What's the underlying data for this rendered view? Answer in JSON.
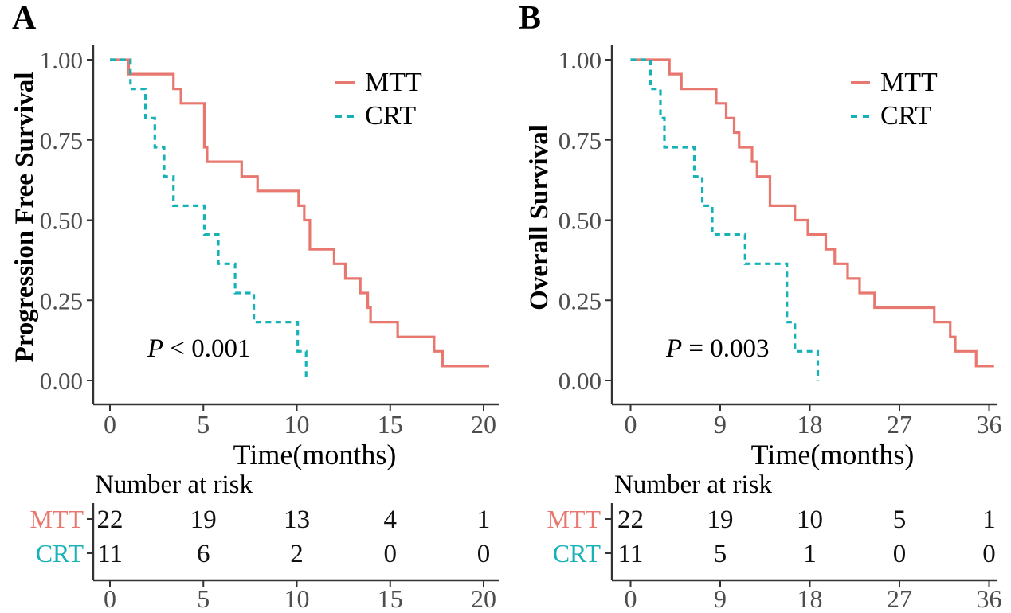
{
  "figure_type": "Kaplan-Meier survival curves, two panels",
  "chart_data": [
    {
      "panel_label": "A",
      "type": "line",
      "chart_style": "kaplan-meier-step",
      "ylabel": "Progression Free Survival",
      "xlabel": "Time(months)",
      "p_sym": "P",
      "p_rest": " < 0.001",
      "xlim": [
        0,
        20.5
      ],
      "ylim": [
        0,
        1
      ],
      "x_ticks": [
        0,
        5,
        10,
        15,
        20
      ],
      "y_tick_values": [
        1,
        0.75,
        0.5,
        0.25,
        0
      ],
      "y_tick_labels": [
        "1.00",
        "0.75",
        "0.50",
        "0.25",
        "0.00"
      ],
      "grid": false,
      "legend_position": "top-right",
      "series": [
        {
          "name": "MTT",
          "color": "#E8786F",
          "line_style": "solid",
          "n": 22,
          "steps": [
            [
              0,
              1.0
            ],
            [
              1.0,
              0.955
            ],
            [
              3.4,
              0.909
            ],
            [
              3.8,
              0.864
            ],
            [
              5.05,
              0.727
            ],
            [
              5.2,
              0.682
            ],
            [
              7.05,
              0.636
            ],
            [
              7.9,
              0.591
            ],
            [
              10.1,
              0.545
            ],
            [
              10.4,
              0.5
            ],
            [
              10.7,
              0.409
            ],
            [
              12.0,
              0.364
            ],
            [
              12.6,
              0.318
            ],
            [
              13.4,
              0.273
            ],
            [
              13.8,
              0.227
            ],
            [
              13.95,
              0.182
            ],
            [
              15.4,
              0.136
            ],
            [
              17.35,
              0.091
            ],
            [
              17.8,
              0.045
            ]
          ],
          "end_time": 20.3
        },
        {
          "name": "CRT",
          "color": "#16B2B8",
          "line_style": "dashed",
          "n": 11,
          "steps": [
            [
              0,
              1.0
            ],
            [
              1.1,
              0.909
            ],
            [
              1.9,
              0.818
            ],
            [
              2.4,
              0.727
            ],
            [
              2.9,
              0.636
            ],
            [
              3.4,
              0.545
            ],
            [
              5.05,
              0.455
            ],
            [
              5.8,
              0.364
            ],
            [
              6.7,
              0.273
            ],
            [
              7.7,
              0.182
            ],
            [
              10.05,
              0.091
            ],
            [
              10.5,
              0.0
            ]
          ],
          "end_time": 10.5
        }
      ],
      "risk_table": {
        "title": "Number at risk",
        "times": [
          0,
          5,
          10,
          15,
          20
        ],
        "rows": [
          {
            "name": "MTT",
            "counts": [
              22,
              19,
              13,
              4,
              1
            ]
          },
          {
            "name": "CRT",
            "counts": [
              11,
              6,
              2,
              0,
              0
            ]
          }
        ]
      }
    },
    {
      "panel_label": "B",
      "type": "line",
      "chart_style": "kaplan-meier-step",
      "ylabel": "Overall Survival",
      "xlabel": "Time(months)",
      "p_sym": "P",
      "p_rest": " = 0.003",
      "xlim": [
        0,
        37
      ],
      "ylim": [
        0,
        1
      ],
      "x_ticks": [
        0,
        9,
        18,
        27,
        36
      ],
      "y_tick_values": [
        1,
        0.75,
        0.5,
        0.25,
        0
      ],
      "y_tick_labels": [
        "1.00",
        "0.75",
        "0.50",
        "0.25",
        "0.00"
      ],
      "grid": false,
      "legend_position": "top-right",
      "series": [
        {
          "name": "MTT",
          "color": "#E8786F",
          "line_style": "solid",
          "n": 22,
          "steps": [
            [
              0,
              1.0
            ],
            [
              3.9,
              0.955
            ],
            [
              5.1,
              0.909
            ],
            [
              8.6,
              0.864
            ],
            [
              9.6,
              0.818
            ],
            [
              10.4,
              0.773
            ],
            [
              10.9,
              0.727
            ],
            [
              12.2,
              0.682
            ],
            [
              12.7,
              0.636
            ],
            [
              14.0,
              0.545
            ],
            [
              16.5,
              0.5
            ],
            [
              17.8,
              0.455
            ],
            [
              19.6,
              0.409
            ],
            [
              20.5,
              0.364
            ],
            [
              21.8,
              0.318
            ],
            [
              23.0,
              0.273
            ],
            [
              24.5,
              0.227
            ],
            [
              30.5,
              0.182
            ],
            [
              32.1,
              0.136
            ],
            [
              32.6,
              0.091
            ],
            [
              34.7,
              0.045
            ]
          ],
          "end_time": 36.5
        },
        {
          "name": "CRT",
          "color": "#16B2B8",
          "line_style": "dashed",
          "n": 11,
          "steps": [
            [
              0,
              1.0
            ],
            [
              2.0,
              0.909
            ],
            [
              3.0,
              0.818
            ],
            [
              3.4,
              0.727
            ],
            [
              6.4,
              0.636
            ],
            [
              7.2,
              0.545
            ],
            [
              8.2,
              0.455
            ],
            [
              11.5,
              0.364
            ],
            [
              15.7,
              0.182
            ],
            [
              16.5,
              0.091
            ],
            [
              18.8,
              0.0
            ]
          ],
          "end_time": 18.8
        }
      ],
      "risk_table": {
        "title": "Number at risk",
        "times": [
          0,
          9,
          18,
          27,
          36
        ],
        "rows": [
          {
            "name": "MTT",
            "counts": [
              22,
              19,
              10,
              5,
              1
            ]
          },
          {
            "name": "CRT",
            "counts": [
              11,
              5,
              1,
              0,
              0
            ]
          }
        ]
      }
    }
  ]
}
